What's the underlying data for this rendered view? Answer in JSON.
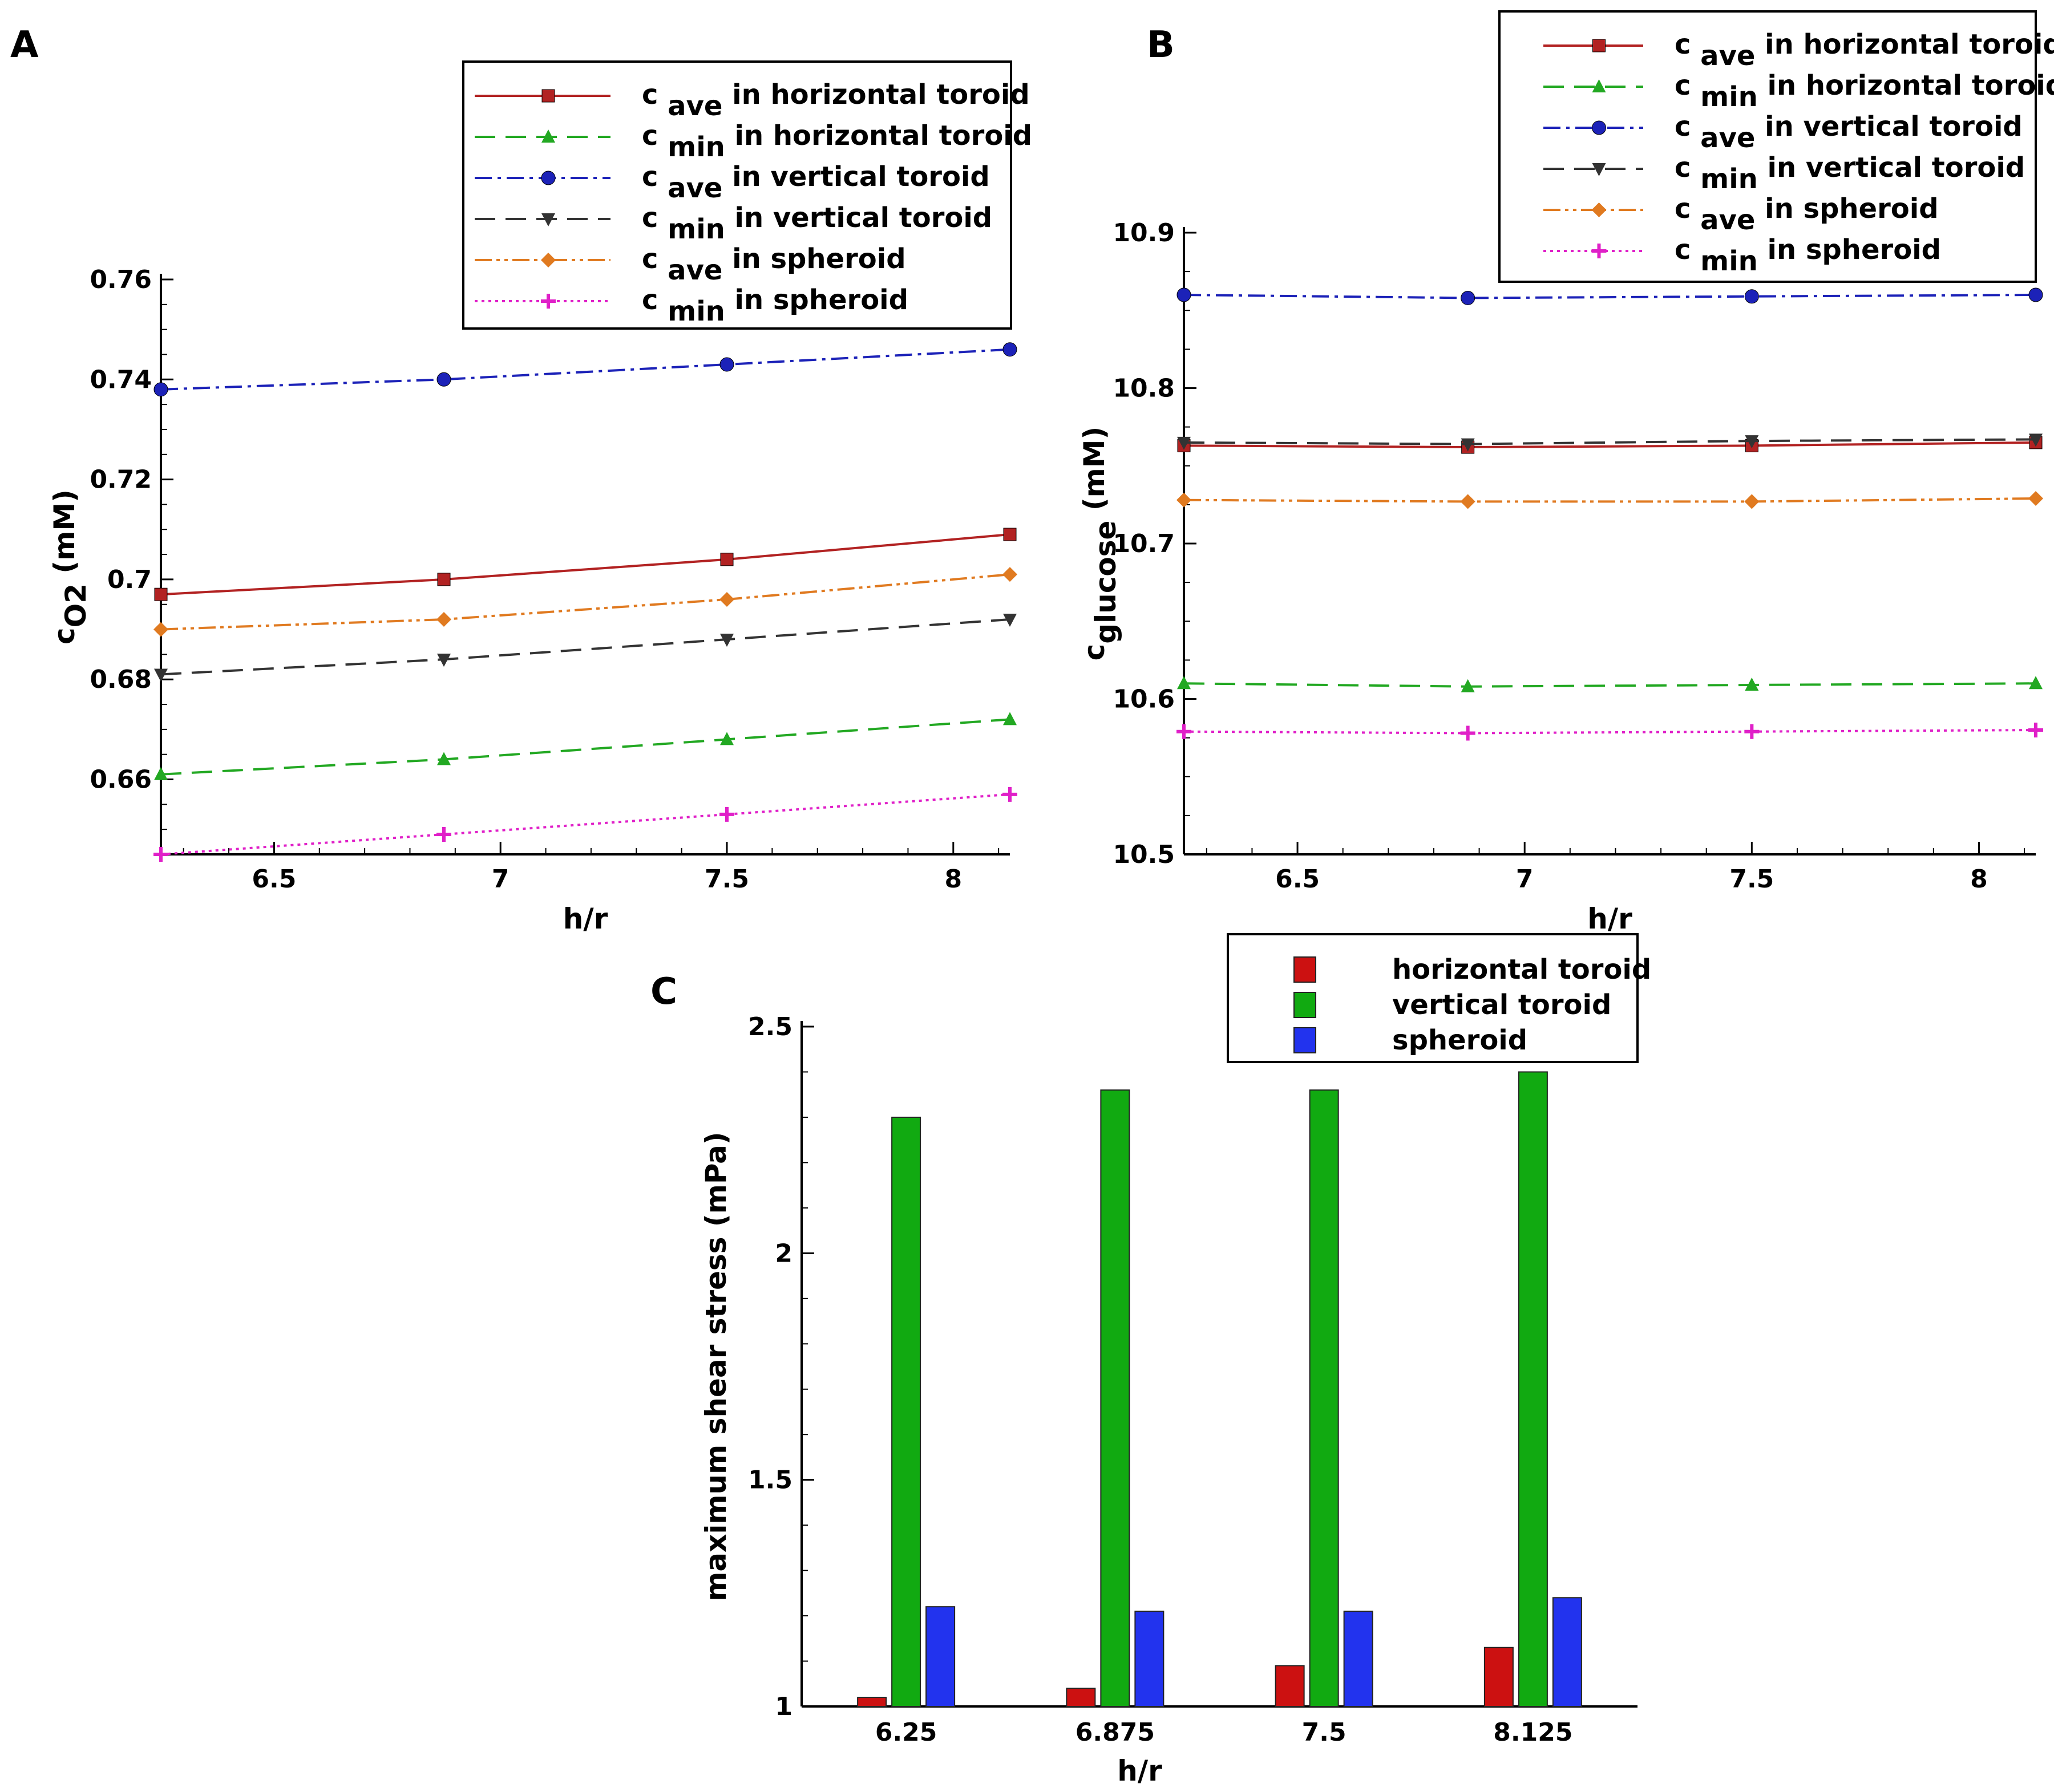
{
  "panels": {
    "a": "A",
    "b": "B",
    "c": "C"
  },
  "colors": {
    "cave_h": "#b22222",
    "cmin_h": "#22a822",
    "cave_v": "#1c22b8",
    "cmin_v": "#333333",
    "cave_s": "#e07a20",
    "cmin_s": "#e020c8",
    "bar_h": "#cc1111",
    "bar_v": "#11aa11",
    "bar_s": "#2233ee"
  },
  "chart_data": [
    {
      "id": "A",
      "type": "line",
      "xlabel": "h/r",
      "ylabel": "O2 (mM)",
      "ylabel_main": "c",
      "ylabel_sub": "O2",
      "ylabel_rest": " (mM)",
      "xlim": [
        6.25,
        8.125
      ],
      "ylim": [
        0.645,
        0.76
      ],
      "xticks": [
        6.5,
        7,
        7.5,
        8
      ],
      "xtick_labels": [
        "6.5",
        "7",
        "7.5",
        "8"
      ],
      "yticks": [
        0.66,
        0.68,
        0.7,
        0.72,
        0.74,
        0.76
      ],
      "ytick_labels": [
        "0.66",
        "0.68",
        "0.7",
        "0.72",
        "0.74",
        "0.76"
      ],
      "x": [
        6.25,
        6.875,
        7.5,
        8.125
      ],
      "legend_position": "top-right",
      "series": [
        {
          "key": "cave_h",
          "sub": "ave",
          "rest": " in horizontal toroid",
          "marker": "square",
          "dash": "",
          "values": [
            0.697,
            0.7,
            0.704,
            0.709
          ]
        },
        {
          "key": "cmin_h",
          "sub": "min",
          "rest": " in horizontal toroid",
          "marker": "triangle",
          "dash": "36 18",
          "values": [
            0.661,
            0.664,
            0.668,
            0.672
          ]
        },
        {
          "key": "cave_v",
          "sub": "ave",
          "rest": " in vertical toroid",
          "marker": "circle",
          "dash": "30 10 6 10",
          "values": [
            0.738,
            0.74,
            0.743,
            0.746
          ]
        },
        {
          "key": "cmin_v",
          "sub": "min",
          "rest": " in vertical toroid",
          "marker": "triangle-down",
          "dash": "36 18",
          "values": [
            0.681,
            0.684,
            0.688,
            0.692
          ]
        },
        {
          "key": "cave_s",
          "sub": "ave",
          "rest": " in spheroid",
          "marker": "diamond",
          "dash": "30 8 6 8 6 8",
          "values": [
            0.69,
            0.692,
            0.696,
            0.701
          ]
        },
        {
          "key": "cmin_s",
          "sub": "min",
          "rest": " in spheroid",
          "marker": "plus",
          "dash": "5 7",
          "values": [
            0.645,
            0.649,
            0.653,
            0.657
          ]
        }
      ]
    },
    {
      "id": "B",
      "type": "line",
      "xlabel": "h/r",
      "ylabel_main": "c",
      "ylabel_sub": "glucose",
      "ylabel_rest": " (mM)",
      "xlim": [
        6.25,
        8.125
      ],
      "ylim": [
        10.5,
        10.9
      ],
      "xticks": [
        6.5,
        7,
        7.5,
        8
      ],
      "xtick_labels": [
        "6.5",
        "7",
        "7.5",
        "8"
      ],
      "yticks": [
        10.5,
        10.6,
        10.7,
        10.8,
        10.9
      ],
      "ytick_labels": [
        "10.5",
        "10.6",
        "10.7",
        "10.8",
        "10.9"
      ],
      "x": [
        6.25,
        6.875,
        7.5,
        8.125
      ],
      "legend_position": "top-right",
      "series": [
        {
          "key": "cave_h",
          "sub": "ave",
          "rest": " in horizontal toroid",
          "marker": "square",
          "dash": "",
          "values": [
            10.763,
            10.762,
            10.763,
            10.765
          ]
        },
        {
          "key": "cmin_h",
          "sub": "min",
          "rest": " in horizontal toroid",
          "marker": "triangle",
          "dash": "36 18",
          "values": [
            10.61,
            10.608,
            10.609,
            10.61
          ]
        },
        {
          "key": "cave_v",
          "sub": "ave",
          "rest": " in vertical toroid",
          "marker": "circle",
          "dash": "30 10 6 10",
          "values": [
            10.86,
            10.858,
            10.859,
            10.86
          ]
        },
        {
          "key": "cmin_v",
          "sub": "min",
          "rest": " in vertical toroid",
          "marker": "triangle-down",
          "dash": "36 18",
          "values": [
            10.765,
            10.764,
            10.766,
            10.767
          ]
        },
        {
          "key": "cave_s",
          "sub": "ave",
          "rest": " in spheroid",
          "marker": "diamond",
          "dash": "30 8 6 8 6 8",
          "values": [
            10.728,
            10.727,
            10.727,
            10.729
          ]
        },
        {
          "key": "cmin_s",
          "sub": "min",
          "rest": " in spheroid",
          "marker": "plus",
          "dash": "5 7",
          "values": [
            10.579,
            10.578,
            10.579,
            10.58
          ]
        }
      ]
    },
    {
      "id": "C",
      "type": "bar",
      "xlabel": "h/r",
      "ylabel": "maximum shear stress (mPa)",
      "categories": [
        "6.25",
        "6.875",
        "7.5",
        "8.125"
      ],
      "ylim": [
        1,
        2.5
      ],
      "yticks": [
        1,
        1.5,
        2,
        2.5
      ],
      "ytick_labels": [
        "1",
        "1.5",
        "2",
        "2.5"
      ],
      "legend_position": "top-right",
      "series": [
        {
          "key": "bar_h",
          "name": "horizontal toroid",
          "values": [
            1.02,
            1.04,
            1.09,
            1.13
          ]
        },
        {
          "key": "bar_v",
          "name": "vertical toroid",
          "values": [
            2.3,
            2.36,
            2.36,
            2.4
          ]
        },
        {
          "key": "bar_s",
          "name": "spheroid",
          "values": [
            1.22,
            1.21,
            1.21,
            1.24
          ]
        }
      ]
    }
  ]
}
